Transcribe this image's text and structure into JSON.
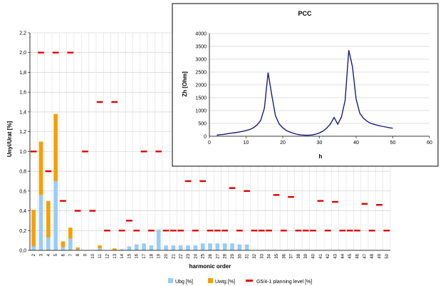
{
  "chart_data": [
    {
      "type": "bar",
      "title": "",
      "xlabel": "harmonic order",
      "ylabel": "Unyi/Urat [%]",
      "ylim": [
        0,
        2.2
      ],
      "y_ticks": [
        "0,0",
        "0,2",
        "0,4",
        "0,6",
        "0,8",
        "1,0",
        "1,2",
        "1,4",
        "1,6",
        "1,8",
        "2,0",
        "2,2"
      ],
      "categories": [
        "2",
        "3",
        "4",
        "5",
        "6",
        "7",
        "8",
        "9",
        "10",
        "11",
        "12",
        "13",
        "14",
        "15",
        "16",
        "17",
        "18",
        "19",
        "20",
        "21",
        "22",
        "23",
        "24",
        "25",
        "26",
        "27",
        "28",
        "29",
        "30",
        "31",
        "32",
        "33",
        "34",
        "35",
        "36",
        "37",
        "38",
        "39",
        "40",
        "41",
        "42",
        "43",
        "44",
        "45",
        "46",
        "47",
        "48",
        "49",
        "50"
      ],
      "stacked": true,
      "grid": true,
      "legend_position": "bottom",
      "series": [
        {
          "name": "Ubg [%]",
          "kind": "bar",
          "color": "#99ccf5",
          "values": [
            0.04,
            0.56,
            0.13,
            0.7,
            0.03,
            0.12,
            0.01,
            0.0,
            0.0,
            0.02,
            0.0,
            0.0,
            0.01,
            0.04,
            0.06,
            0.07,
            0.05,
            0.21,
            0.05,
            0.05,
            0.05,
            0.05,
            0.05,
            0.07,
            0.07,
            0.07,
            0.07,
            0.07,
            0.06,
            0.06,
            0,
            0,
            0,
            0,
            0,
            0,
            0,
            0,
            0,
            0,
            0,
            0,
            0,
            0,
            0,
            0,
            0,
            0,
            0
          ]
        },
        {
          "name": "Uwtg [%]",
          "kind": "bar",
          "color": "#f5a000",
          "values": [
            0.37,
            0.54,
            0.37,
            0.68,
            0.06,
            0.11,
            0.02,
            0.0,
            0.0,
            0.03,
            0.0,
            0.02,
            0.0,
            0.0,
            0.0,
            0.0,
            0.0,
            0.0,
            0.0,
            0.0,
            0.0,
            0.0,
            0.0,
            0.0,
            0.0,
            0.0,
            0.0,
            0.0,
            0.0,
            0.0,
            0,
            0,
            0,
            0,
            0,
            0,
            0,
            0,
            0,
            0,
            0,
            0,
            0,
            0,
            0,
            0,
            0,
            0,
            0
          ]
        },
        {
          "name": "G5/4-1 planning level [%]",
          "kind": "marker",
          "color": "#e00000",
          "values": [
            1.0,
            2.0,
            0.8,
            2.0,
            0.5,
            2.0,
            0.4,
            1.0,
            0.4,
            1.5,
            0.2,
            1.5,
            0.2,
            0.3,
            0.2,
            1.0,
            0.2,
            1.0,
            0.2,
            0.2,
            0.2,
            0.7,
            0.2,
            0.7,
            0.2,
            0.2,
            0.2,
            0.63,
            0.2,
            0.6,
            0.2,
            0.2,
            0.2,
            0.56,
            0.2,
            0.54,
            0.2,
            0.2,
            0.2,
            0.5,
            0.2,
            0.49,
            0.2,
            0.2,
            0.2,
            0.47,
            0.2,
            0.46,
            0.2
          ]
        }
      ]
    },
    {
      "type": "line",
      "title": "PCC",
      "xlabel": "h",
      "ylabel": "Zh [Ohm]",
      "xlim": [
        0,
        60
      ],
      "ylim": [
        0,
        4000
      ],
      "x_ticks": [
        "0",
        "10",
        "20",
        "30",
        "40",
        "50",
        "60"
      ],
      "y_ticks": [
        "0",
        "500",
        "1000",
        "1500",
        "2000",
        "2500",
        "3000",
        "3500",
        "4000"
      ],
      "grid": true,
      "series": [
        {
          "name": "",
          "color": "#1a1a80",
          "x": [
            2,
            3,
            4,
            5,
            6,
            7,
            8,
            9,
            10,
            11,
            12,
            13,
            14,
            15,
            16,
            17,
            18,
            19,
            20,
            21,
            22,
            23,
            24,
            25,
            26,
            27,
            28,
            29,
            30,
            31,
            32,
            33,
            34,
            35,
            36,
            37,
            38,
            39,
            40,
            41,
            42,
            43,
            44,
            45,
            46,
            47,
            48,
            49,
            50
          ],
          "y": [
            40,
            60,
            75,
            100,
            120,
            140,
            160,
            190,
            220,
            260,
            330,
            440,
            620,
            1100,
            2480,
            1600,
            800,
            480,
            330,
            220,
            160,
            110,
            70,
            50,
            40,
            40,
            50,
            80,
            130,
            200,
            320,
            480,
            730,
            470,
            750,
            1400,
            3350,
            2700,
            1450,
            900,
            700,
            580,
            500,
            460,
            420,
            390,
            360,
            330,
            310
          ]
        }
      ]
    }
  ]
}
